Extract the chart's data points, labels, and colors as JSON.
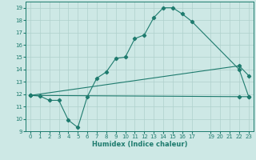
{
  "xlabel": "Humidex (Indice chaleur)",
  "xlim": [
    -0.5,
    23.5
  ],
  "ylim": [
    9,
    19.5
  ],
  "yticks": [
    9,
    10,
    11,
    12,
    13,
    14,
    15,
    16,
    17,
    18,
    19
  ],
  "xticks": [
    0,
    1,
    2,
    3,
    4,
    5,
    6,
    7,
    8,
    9,
    10,
    11,
    12,
    13,
    14,
    15,
    16,
    17,
    19,
    20,
    21,
    22,
    23
  ],
  "background_color": "#cde8e5",
  "grid_color": "#afd0cc",
  "line_color": "#1e7b6e",
  "line1_x": [
    0,
    1,
    2,
    3,
    4,
    5,
    6,
    7,
    8,
    9,
    10,
    11,
    12,
    13,
    14,
    15,
    16,
    17,
    22,
    23
  ],
  "line1_y": [
    11.9,
    11.85,
    11.5,
    11.5,
    9.9,
    9.3,
    11.8,
    13.3,
    13.8,
    14.9,
    15.0,
    16.5,
    16.8,
    18.2,
    19.0,
    19.0,
    18.5,
    17.9,
    14.0,
    11.8
  ],
  "line2_x": [
    0,
    22,
    23
  ],
  "line2_y": [
    11.9,
    14.3,
    13.5
  ],
  "line3_x": [
    0,
    22,
    23
  ],
  "line3_y": [
    11.9,
    11.8,
    11.8
  ],
  "figsize": [
    3.2,
    2.0
  ],
  "dpi": 100
}
